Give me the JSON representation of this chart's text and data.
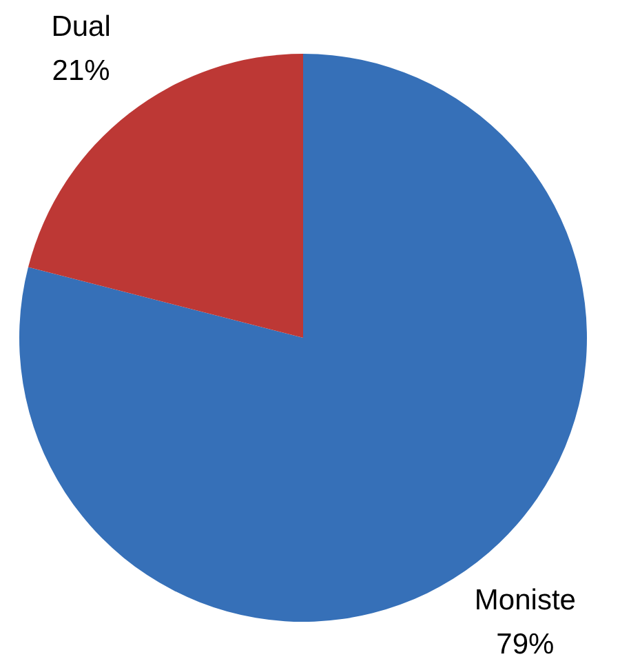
{
  "chart_data": {
    "type": "pie",
    "categories": [
      "Moniste",
      "Dual"
    ],
    "values": [
      79,
      21
    ],
    "colors": [
      "#3670b8",
      "#bd3835"
    ],
    "value_labels": [
      "79%",
      "21%"
    ]
  }
}
